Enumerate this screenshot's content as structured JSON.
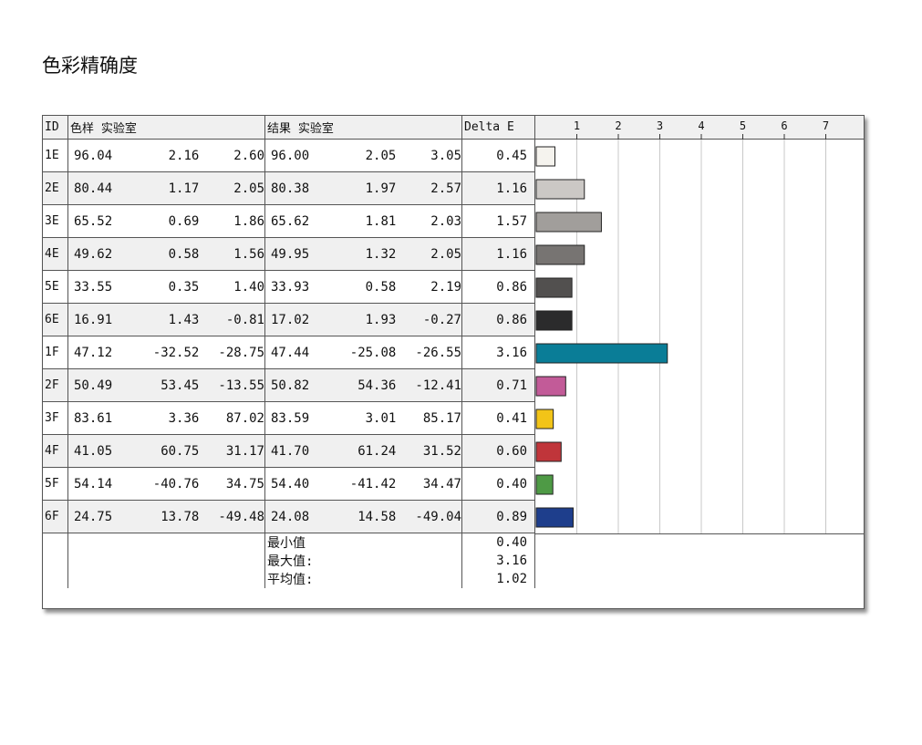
{
  "title": "色彩精确度",
  "table": {
    "headers": {
      "id": "ID",
      "sample": "色样 实验室",
      "result": "结果 实验室",
      "delta": "Delta E"
    },
    "rows": [
      {
        "id": "1E",
        "s1": "96.04",
        "s2": "2.16",
        "s3": "2.60",
        "r1": "96.00",
        "r2": "2.05",
        "r3": "3.05",
        "de": "0.45",
        "color": "#f5f3ee"
      },
      {
        "id": "2E",
        "s1": "80.44",
        "s2": "1.17",
        "s3": "2.05",
        "r1": "80.38",
        "r2": "1.97",
        "r3": "2.57",
        "de": "1.16",
        "color": "#cbc8c5"
      },
      {
        "id": "3E",
        "s1": "65.52",
        "s2": "0.69",
        "s3": "1.86",
        "r1": "65.62",
        "r2": "1.81",
        "r3": "2.03",
        "de": "1.57",
        "color": "#a19e9b"
      },
      {
        "id": "4E",
        "s1": "49.62",
        "s2": "0.58",
        "s3": "1.56",
        "r1": "49.95",
        "r2": "1.32",
        "r3": "2.05",
        "de": "1.16",
        "color": "#777472"
      },
      {
        "id": "5E",
        "s1": "33.55",
        "s2": "0.35",
        "s3": "1.40",
        "r1": "33.93",
        "r2": "0.58",
        "r3": "2.19",
        "de": "0.86",
        "color": "#52504f"
      },
      {
        "id": "6E",
        "s1": "16.91",
        "s2": "1.43",
        "s3": "-0.81",
        "r1": "17.02",
        "r2": "1.93",
        "r3": "-0.27",
        "de": "0.86",
        "color": "#2b2b2c"
      },
      {
        "id": "1F",
        "s1": "47.12",
        "s2": "-32.52",
        "s3": "-28.75",
        "r1": "47.44",
        "r2": "-25.08",
        "r3": "-26.55",
        "de": "3.16",
        "color": "#0a7d97"
      },
      {
        "id": "2F",
        "s1": "50.49",
        "s2": "53.45",
        "s3": "-13.55",
        "r1": "50.82",
        "r2": "54.36",
        "r3": "-12.41",
        "de": "0.71",
        "color": "#c25b98"
      },
      {
        "id": "3F",
        "s1": "83.61",
        "s2": "3.36",
        "s3": "87.02",
        "r1": "83.59",
        "r2": "3.01",
        "r3": "85.17",
        "de": "0.41",
        "color": "#f2c418"
      },
      {
        "id": "4F",
        "s1": "41.05",
        "s2": "60.75",
        "s3": "31.17",
        "r1": "41.70",
        "r2": "61.24",
        "r3": "31.52",
        "de": "0.60",
        "color": "#c0353a"
      },
      {
        "id": "5F",
        "s1": "54.14",
        "s2": "-40.76",
        "s3": "34.75",
        "r1": "54.40",
        "r2": "-41.42",
        "r3": "34.47",
        "de": "0.40",
        "color": "#4e9a45"
      },
      {
        "id": "6F",
        "s1": "24.75",
        "s2": "13.78",
        "s3": "-49.48",
        "r1": "24.08",
        "r2": "14.58",
        "r3": "-49.04",
        "de": "0.89",
        "color": "#1e3e8c"
      }
    ],
    "summary": [
      {
        "label": "最小值",
        "value": "0.40"
      },
      {
        "label": "最大值:",
        "value": "3.16"
      },
      {
        "label": "平均值:",
        "value": "1.02"
      }
    ]
  },
  "chart_data": {
    "type": "bar",
    "orientation": "horizontal",
    "categories": [
      "1E",
      "2E",
      "3E",
      "4E",
      "5E",
      "6E",
      "1F",
      "2F",
      "3F",
      "4F",
      "5F",
      "6F"
    ],
    "values": [
      0.45,
      1.16,
      1.57,
      1.16,
      0.86,
      0.86,
      3.16,
      0.71,
      0.41,
      0.6,
      0.4,
      0.89
    ],
    "xticks": [
      "1",
      "2",
      "3",
      "4",
      "5",
      "6",
      "7"
    ],
    "xlim": [
      0,
      8
    ],
    "grid": true,
    "legend": "none"
  }
}
